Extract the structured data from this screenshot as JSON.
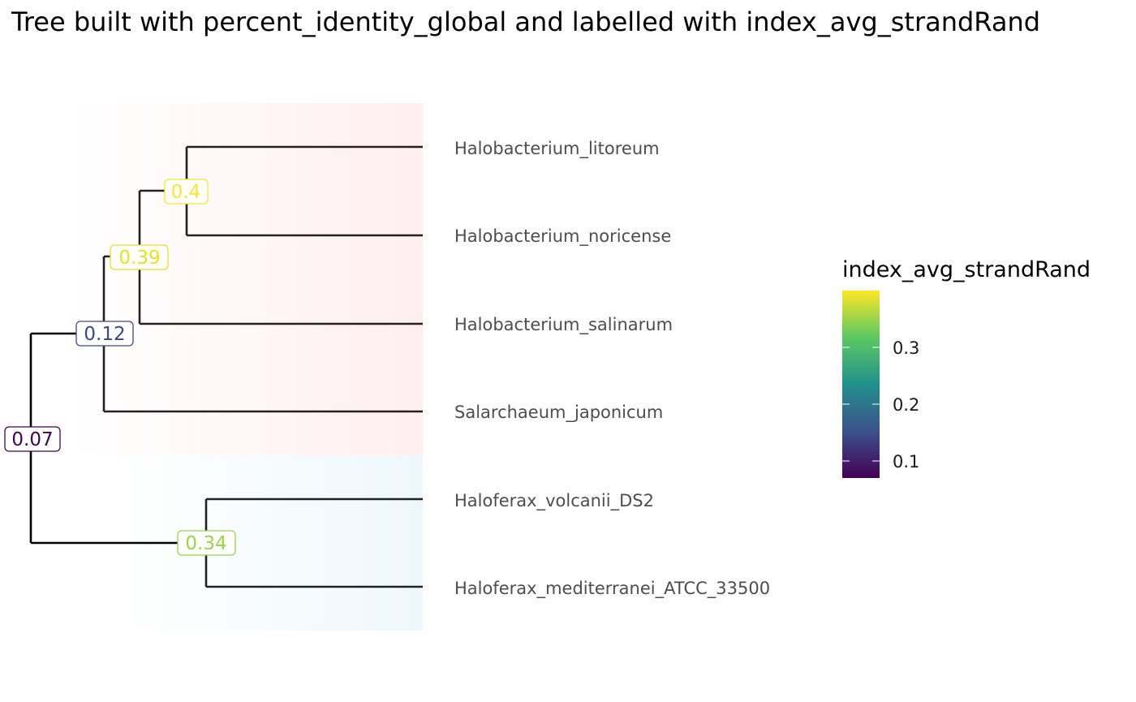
{
  "title": "Tree built with percent_identity_global and labelled with index_avg_strandRand",
  "tips": [
    "Halobacterium_litoreum",
    "Halobacterium_noricense",
    "Halobacterium_salinarum",
    "Salarchaeum_japonicum",
    "Haloferax_volcanii_DS2",
    "Haloferax_mediterranei_ATCC_33500"
  ],
  "nodes": [
    {
      "label": "0.07",
      "value": 0.07,
      "color": "#440154"
    },
    {
      "label": "0.12",
      "value": 0.12,
      "color": "#3f4788"
    },
    {
      "label": "0.39",
      "value": 0.39,
      "color": "#e8e419"
    },
    {
      "label": "0.4",
      "value": 0.4,
      "color": "#fde725"
    },
    {
      "label": "0.34",
      "value": 0.34,
      "color": "#95d840"
    }
  ],
  "legend": {
    "title": "index_avg_strandRand",
    "ticks": [
      "0.1",
      "0.2",
      "0.3"
    ],
    "tick_values": [
      0.1,
      0.2,
      0.3
    ],
    "range": [
      0.07,
      0.4
    ],
    "colors": [
      "#440154",
      "#3b528b",
      "#21908c",
      "#5dc863",
      "#fde725"
    ]
  },
  "clade_colors": {
    "halobacteriaceae": "#ffeef0",
    "haloferax": "#eef8fc"
  }
}
